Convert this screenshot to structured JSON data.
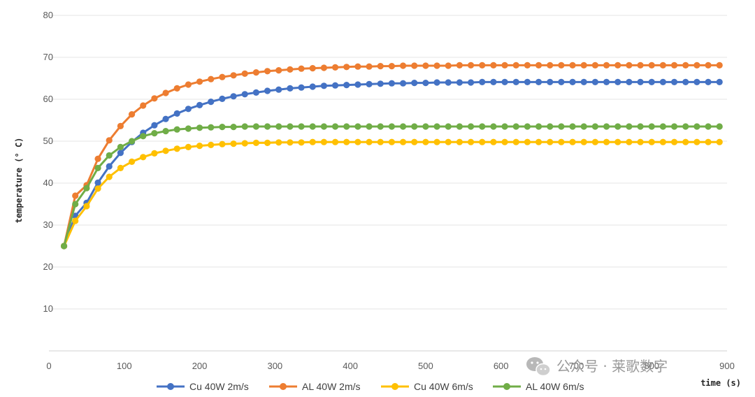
{
  "chart_data": {
    "type": "line",
    "xlabel": "time (s)",
    "ylabel": "temperature (° C)",
    "xlim": [
      0,
      900
    ],
    "ylim": [
      0,
      80
    ],
    "x_ticks": [
      0,
      100,
      200,
      300,
      400,
      500,
      600,
      700,
      800,
      900
    ],
    "y_ticks": [
      10,
      20,
      30,
      40,
      50,
      60,
      70,
      80
    ],
    "grid": "horizontal",
    "legend_position": "bottom",
    "series": [
      {
        "name": "Cu 40W 2m/s",
        "color": "#4472C4",
        "x": [
          20,
          35,
          50,
          65,
          80,
          95,
          110,
          125,
          140,
          155,
          170,
          185,
          200,
          215,
          230,
          245,
          260,
          275,
          290,
          305,
          320,
          335,
          350,
          365,
          380,
          395,
          410,
          425,
          440,
          455,
          470,
          485,
          500,
          515,
          530,
          545,
          560,
          575,
          590,
          605,
          620,
          635,
          650,
          665,
          680,
          695,
          710,
          725,
          740,
          755,
          770,
          785,
          800,
          815,
          830,
          845,
          860,
          875,
          890
        ],
        "y": [
          25,
          32.2,
          35.3,
          40.1,
          44,
          47.2,
          49.8,
          52,
          53.8,
          55.3,
          56.6,
          57.7,
          58.6,
          59.4,
          60.1,
          60.7,
          61.2,
          61.6,
          62,
          62.3,
          62.6,
          62.8,
          63,
          63.2,
          63.3,
          63.4,
          63.5,
          63.6,
          63.7,
          63.8,
          63.8,
          63.9,
          63.9,
          64,
          64,
          64,
          64,
          64.1,
          64.1,
          64.1,
          64.1,
          64.1,
          64.1,
          64.1,
          64.1,
          64.1,
          64.1,
          64.1,
          64.1,
          64.1,
          64.1,
          64.1,
          64.1,
          64.1,
          64.1,
          64.1,
          64.1,
          64.1,
          64.1
        ]
      },
      {
        "name": "AL 40W 2m/s",
        "color": "#ED7D31",
        "x": [
          20,
          35,
          50,
          65,
          80,
          95,
          110,
          125,
          140,
          155,
          170,
          185,
          200,
          215,
          230,
          245,
          260,
          275,
          290,
          305,
          320,
          335,
          350,
          365,
          380,
          395,
          410,
          425,
          440,
          455,
          470,
          485,
          500,
          515,
          530,
          545,
          560,
          575,
          590,
          605,
          620,
          635,
          650,
          665,
          680,
          695,
          710,
          725,
          740,
          755,
          770,
          785,
          800,
          815,
          830,
          845,
          860,
          875,
          890
        ],
        "y": [
          25,
          37,
          39.5,
          45.8,
          50.2,
          53.6,
          56.4,
          58.5,
          60.2,
          61.5,
          62.6,
          63.5,
          64.2,
          64.8,
          65.3,
          65.7,
          66.1,
          66.4,
          66.7,
          66.9,
          67.1,
          67.3,
          67.4,
          67.5,
          67.6,
          67.7,
          67.8,
          67.8,
          67.9,
          67.9,
          68,
          68,
          68,
          68,
          68,
          68.1,
          68.1,
          68.1,
          68.1,
          68.1,
          68.1,
          68.1,
          68.1,
          68.1,
          68.1,
          68.1,
          68.1,
          68.1,
          68.1,
          68.1,
          68.1,
          68.1,
          68.1,
          68.1,
          68.1,
          68.1,
          68.1,
          68.1,
          68.1
        ]
      },
      {
        "name": "Cu 40W 6m/s",
        "color": "#FFC000",
        "x": [
          20,
          35,
          50,
          65,
          80,
          95,
          110,
          125,
          140,
          155,
          170,
          185,
          200,
          215,
          230,
          245,
          260,
          275,
          290,
          305,
          320,
          335,
          350,
          365,
          380,
          395,
          410,
          425,
          440,
          455,
          470,
          485,
          500,
          515,
          530,
          545,
          560,
          575,
          590,
          605,
          620,
          635,
          650,
          665,
          680,
          695,
          710,
          725,
          740,
          755,
          770,
          785,
          800,
          815,
          830,
          845,
          860,
          875,
          890
        ],
        "y": [
          25,
          31,
          34.5,
          38.7,
          41.5,
          43.6,
          45.1,
          46.2,
          47.1,
          47.7,
          48.2,
          48.6,
          48.9,
          49.1,
          49.3,
          49.4,
          49.5,
          49.6,
          49.6,
          49.7,
          49.7,
          49.7,
          49.8,
          49.8,
          49.8,
          49.8,
          49.8,
          49.8,
          49.8,
          49.8,
          49.8,
          49.8,
          49.8,
          49.8,
          49.8,
          49.8,
          49.8,
          49.8,
          49.8,
          49.8,
          49.8,
          49.8,
          49.8,
          49.8,
          49.8,
          49.8,
          49.8,
          49.8,
          49.8,
          49.8,
          49.8,
          49.8,
          49.8,
          49.8,
          49.8,
          49.8,
          49.8,
          49.8,
          49.8
        ]
      },
      {
        "name": "AL 40W 6m/s",
        "color": "#70AD47",
        "x": [
          20,
          35,
          50,
          65,
          80,
          95,
          110,
          125,
          140,
          155,
          170,
          185,
          200,
          215,
          230,
          245,
          260,
          275,
          290,
          305,
          320,
          335,
          350,
          365,
          380,
          395,
          410,
          425,
          440,
          455,
          470,
          485,
          500,
          515,
          530,
          545,
          560,
          575,
          590,
          605,
          620,
          635,
          650,
          665,
          680,
          695,
          710,
          725,
          740,
          755,
          770,
          785,
          800,
          815,
          830,
          845,
          860,
          875,
          890
        ],
        "y": [
          25,
          35,
          38.8,
          43.6,
          46.6,
          48.6,
          50,
          51.2,
          51.9,
          52.4,
          52.8,
          53,
          53.2,
          53.3,
          53.4,
          53.4,
          53.5,
          53.5,
          53.5,
          53.5,
          53.5,
          53.5,
          53.5,
          53.5,
          53.5,
          53.5,
          53.5,
          53.5,
          53.5,
          53.5,
          53.5,
          53.5,
          53.5,
          53.5,
          53.5,
          53.5,
          53.5,
          53.5,
          53.5,
          53.5,
          53.5,
          53.5,
          53.5,
          53.5,
          53.5,
          53.5,
          53.5,
          53.5,
          53.5,
          53.5,
          53.5,
          53.5,
          53.5,
          53.5,
          53.5,
          53.5,
          53.5,
          53.5,
          53.5
        ]
      }
    ]
  },
  "watermark": {
    "icon": "wechat-icon",
    "text": "公众号 · 莱歌数字"
  }
}
